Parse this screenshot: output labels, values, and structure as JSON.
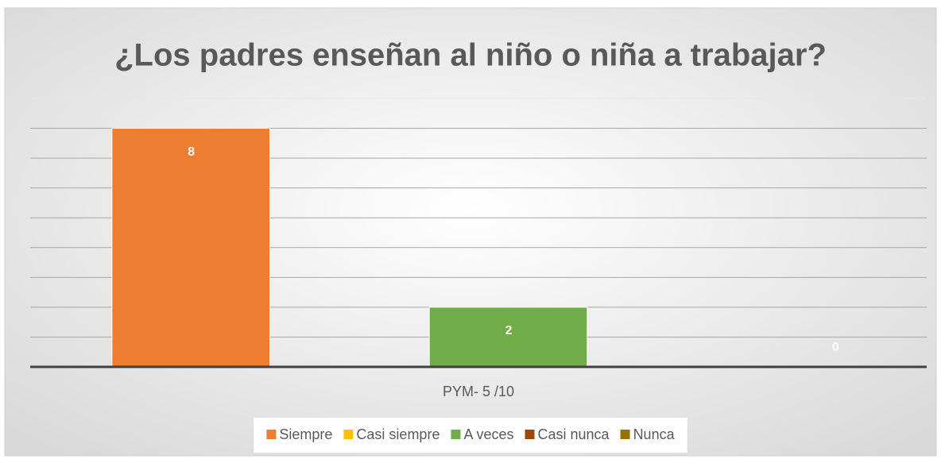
{
  "chart_data": {
    "type": "bar",
    "title": "¿Los padres enseñan al niño o niña a trabajar?",
    "categories": [
      "PYM- 5 /10"
    ],
    "series": [
      {
        "name": "Siempre",
        "color": "#ed7d31",
        "values": [
          8
        ]
      },
      {
        "name": "Casi siempre",
        "color": "#ffc000",
        "values": [
          null
        ]
      },
      {
        "name": "A veces",
        "color": "#70ad47",
        "values": [
          2
        ]
      },
      {
        "name": "Casi nunca",
        "color": "#9e480e",
        "values": [
          null
        ]
      },
      {
        "name": "Nunca",
        "color": "#997300",
        "values": [
          0
        ]
      }
    ],
    "ylim": [
      0,
      9
    ],
    "yticks": [
      0,
      1,
      2,
      3,
      4,
      5,
      6,
      7,
      8,
      9
    ],
    "grid": true,
    "legend": "bottom"
  }
}
